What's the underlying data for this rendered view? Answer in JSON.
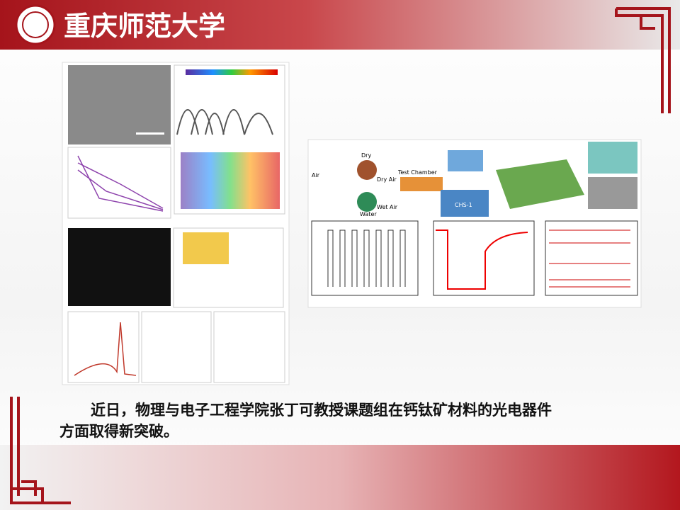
{
  "header": {
    "title": "重庆师范大学"
  },
  "figure_right": {
    "labels": [
      "Air",
      "Dry",
      "Dry Air",
      "Water",
      "Wet Air",
      "Test Chamber",
      "CHS-1"
    ]
  },
  "caption": {
    "lines": [
      "近日，物理与电子工程学院张丁可教授课题组在钙钛矿材料的光电器件",
      "方面取得新突破。"
    ]
  }
}
